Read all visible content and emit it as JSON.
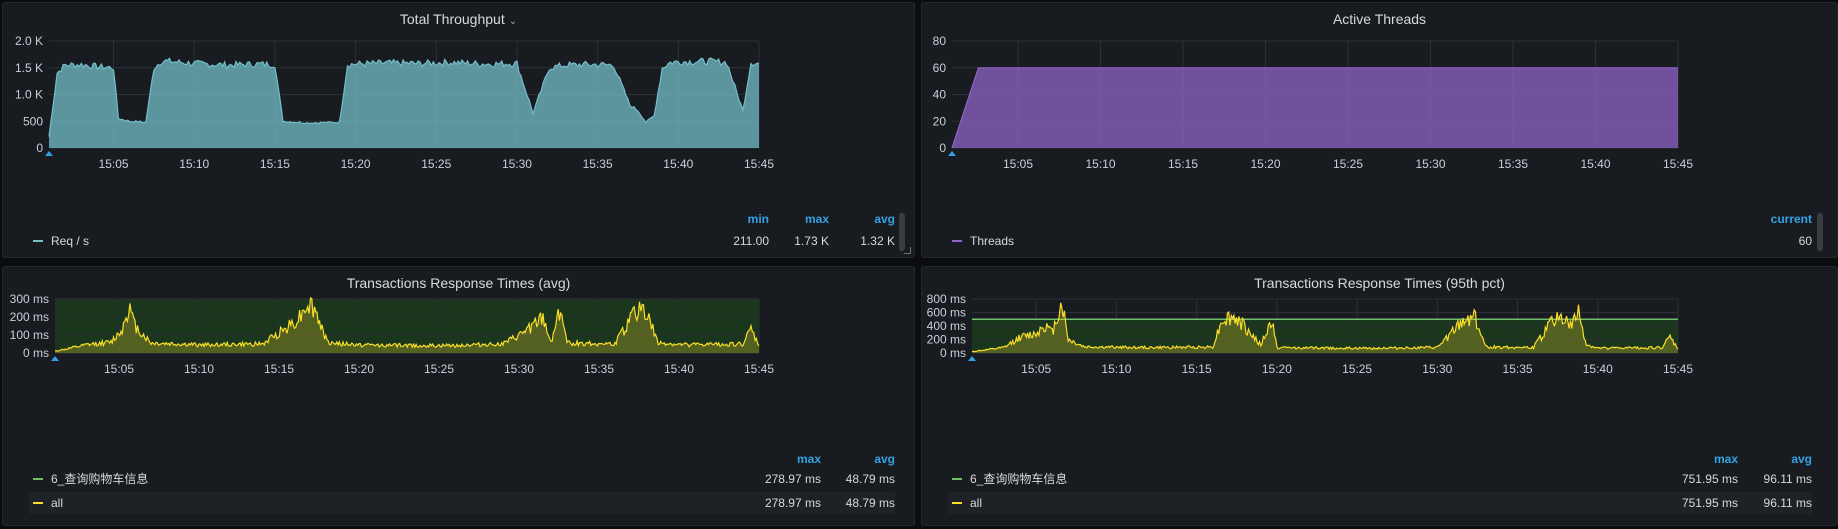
{
  "panels": {
    "throughput": {
      "title": "Total Throughput",
      "legend": {
        "headers": [
          "min",
          "max",
          "avg"
        ],
        "rows": [
          {
            "name": "Req / s",
            "values": [
              "211.00",
              "1.73 K",
              "1.32 K"
            ]
          }
        ]
      }
    },
    "threads": {
      "title": "Active Threads",
      "legend": {
        "headers": [
          "current"
        ],
        "rows": [
          {
            "name": "Threads",
            "values": [
              "60"
            ]
          }
        ]
      }
    },
    "rt_avg": {
      "title": "Transactions Response Times (avg)",
      "legend": {
        "headers": [
          "max",
          "avg"
        ],
        "rows": [
          {
            "name": "6_查询购物车信息",
            "values": [
              "278.97 ms",
              "48.79 ms"
            ]
          },
          {
            "name": "all",
            "values": [
              "278.97 ms",
              "48.79 ms"
            ]
          }
        ]
      }
    },
    "rt_95": {
      "title": "Transactions Response Times (95th pct)",
      "legend": {
        "headers": [
          "max",
          "avg"
        ],
        "rows": [
          {
            "name": "6_查询购物车信息",
            "values": [
              "751.95 ms",
              "96.11 ms"
            ]
          },
          {
            "name": "all",
            "values": [
              "751.95 ms",
              "96.11 ms"
            ]
          }
        ]
      }
    }
  },
  "colors": {
    "throughput": "#73bfca",
    "threads": "#8f63c7",
    "rt_all": "#fade2a",
    "rt_txn": "#73bf69",
    "threshold": "#73bf69"
  },
  "chart_data": [
    {
      "id": "throughput",
      "type": "area",
      "xlim": [
        "15:01",
        "15:45"
      ],
      "x_ticks": [
        "15:05",
        "15:10",
        "15:15",
        "15:20",
        "15:25",
        "15:30",
        "15:35",
        "15:40",
        "15:45"
      ],
      "ylim": [
        0,
        2000
      ],
      "y_ticks": [
        0,
        500,
        1000,
        1500,
        2000
      ],
      "y_tick_labels": [
        "0",
        "500",
        "1.0 K",
        "1.5 K",
        "2.0 K"
      ],
      "grid": true,
      "series": [
        {
          "name": "Req / s",
          "x": [
            "15:01",
            "15:01.5",
            "15:02",
            "15:03",
            "15:04",
            "15:05",
            "15:05.3",
            "15:06",
            "15:07",
            "15:07.5",
            "15:08",
            "15:10",
            "15:12",
            "15:14",
            "15:15",
            "15:15.5",
            "15:17",
            "15:19",
            "15:19.5",
            "15:20",
            "15:22",
            "15:24",
            "15:26",
            "15:28",
            "15:30",
            "15:31",
            "15:32",
            "15:33",
            "15:34",
            "15:35",
            "15:36",
            "15:37",
            "15:37.5",
            "15:38",
            "15:38.5",
            "15:39",
            "15:39.5",
            "15:40",
            "15:42",
            "15:43",
            "15:44",
            "15:44.5",
            "15:45"
          ],
          "values": [
            211,
            1400,
            1550,
            1560,
            1520,
            1500,
            550,
            500,
            480,
            1500,
            1630,
            1580,
            1550,
            1570,
            1560,
            500,
            470,
            480,
            1560,
            1570,
            1590,
            1580,
            1600,
            1570,
            1580,
            650,
            1500,
            1550,
            1560,
            1560,
            1550,
            800,
            700,
            480,
            600,
            1500,
            1600,
            1610,
            1620,
            1600,
            700,
            1600,
            1580
          ]
        }
      ]
    },
    {
      "id": "threads",
      "type": "area",
      "xlim": [
        "15:01",
        "15:45"
      ],
      "x_ticks": [
        "15:05",
        "15:10",
        "15:15",
        "15:20",
        "15:25",
        "15:30",
        "15:35",
        "15:40",
        "15:45"
      ],
      "ylim": [
        0,
        80
      ],
      "y_ticks": [
        0,
        20,
        40,
        60,
        80
      ],
      "y_tick_labels": [
        "0",
        "20",
        "40",
        "60",
        "80"
      ],
      "grid": true,
      "series": [
        {
          "name": "Threads",
          "x": [
            "15:01",
            "15:02.6",
            "15:45"
          ],
          "values": [
            0,
            60,
            60
          ]
        }
      ]
    },
    {
      "id": "rt_avg",
      "type": "line",
      "xlim": [
        "15:01",
        "15:45"
      ],
      "x_ticks": [
        "15:05",
        "15:10",
        "15:15",
        "15:20",
        "15:25",
        "15:30",
        "15:35",
        "15:40",
        "15:45"
      ],
      "ylim": [
        0,
        300
      ],
      "y_ticks": [
        0,
        100,
        200,
        300
      ],
      "y_tick_labels": [
        "0 ms",
        "100 ms",
        "200 ms",
        "300 ms"
      ],
      "grid": true,
      "series": [
        {
          "name": "6_查询购物车信息",
          "x": [
            "15:01",
            "15:45"
          ],
          "values": [
            48.79,
            48.79
          ]
        },
        {
          "name": "all",
          "x": [
            "15:01",
            "15:03",
            "15:04.5",
            "15:05.2",
            "15:05.6",
            "15:06",
            "15:07",
            "15:10",
            "15:14",
            "15:16.2",
            "15:16.8",
            "15:17.3",
            "15:18",
            "15:19",
            "15:20",
            "15:25",
            "15:29",
            "15:30",
            "15:31.5",
            "15:32",
            "15:32.6",
            "15:33",
            "15:36",
            "15:37.2",
            "15:37.7",
            "15:38.2",
            "15:38.7",
            "15:39",
            "15:40",
            "15:44",
            "15:44.5",
            "15:45"
          ],
          "values": [
            10,
            45,
            60,
            130,
            260,
            150,
            55,
            45,
            50,
            190,
            280,
            230,
            60,
            50,
            45,
            40,
            50,
            95,
            190,
            60,
            255,
            55,
            50,
            220,
            260,
            170,
            50,
            55,
            45,
            50,
            130,
            40
          ]
        }
      ]
    },
    {
      "id": "rt_95",
      "type": "line",
      "xlim": [
        "15:01",
        "15:45"
      ],
      "x_ticks": [
        "15:05",
        "15:10",
        "15:15",
        "15:20",
        "15:25",
        "15:30",
        "15:35",
        "15:40",
        "15:45"
      ],
      "ylim": [
        0,
        800
      ],
      "y_ticks": [
        0,
        200,
        400,
        600,
        800
      ],
      "y_tick_labels": [
        "0 ms",
        "200 ms",
        "400 ms",
        "600 ms",
        "800 ms"
      ],
      "grid": true,
      "threshold": 500,
      "series": [
        {
          "name": "6_查询购物车信息",
          "x": [
            "15:01",
            "15:45"
          ],
          "values": [
            96.11,
            96.11
          ]
        },
        {
          "name": "all",
          "x": [
            "15:01",
            "15:03",
            "15:04",
            "15:05",
            "15:05.5",
            "15:06",
            "15:06.6",
            "15:07",
            "15:08",
            "15:12",
            "15:16",
            "15:16.6",
            "15:17.4",
            "15:18",
            "15:19",
            "15:19.7",
            "15:20",
            "15:25",
            "15:30",
            "15:31.6",
            "15:32.3",
            "15:33",
            "15:36",
            "15:37.3",
            "15:37.8",
            "15:38.3",
            "15:38.8",
            "15:39.3",
            "15:40",
            "15:44",
            "15:44.5",
            "15:45"
          ],
          "values": [
            20,
            80,
            230,
            290,
            420,
            300,
            752,
            200,
            90,
            80,
            90,
            500,
            520,
            380,
            120,
            480,
            80,
            70,
            80,
            460,
            570,
            90,
            80,
            520,
            530,
            390,
            590,
            120,
            70,
            80,
            230,
            60
          ]
        }
      ]
    }
  ]
}
